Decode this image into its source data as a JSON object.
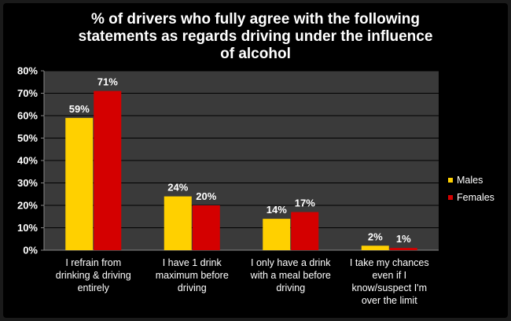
{
  "chart_data": {
    "type": "bar",
    "title": "% of drivers who fully agree with the following statements as regards driving under the influence of alcohol",
    "title_lines": [
      "% of drivers who fully agree with the following",
      "statements as regards driving under the influence",
      "of alcohol"
    ],
    "categories": [
      "I refrain from drinking & driving entirely",
      "I have 1 drink maximum before driving",
      "I only have a drink with a meal before driving",
      "I take my chances even if I know/suspect I'm over the limit"
    ],
    "category_lines": [
      [
        "I refrain from",
        "drinking & driving",
        "entirely"
      ],
      [
        "I have 1 drink",
        "maximum before",
        "driving"
      ],
      [
        "I only have a drink",
        "with a meal before",
        "driving"
      ],
      [
        "I take my chances",
        "even if I",
        "know/suspect I'm",
        "over the limit"
      ]
    ],
    "series": [
      {
        "name": "Males",
        "values": [
          59,
          24,
          14,
          2
        ],
        "labels": [
          "59%",
          "24%",
          "14%",
          "2%"
        ],
        "color": "#ffd000"
      },
      {
        "name": "Females",
        "values": [
          71,
          20,
          17,
          1
        ],
        "labels": [
          "71%",
          "20%",
          "17%",
          "1%"
        ],
        "color": "#d40000"
      }
    ],
    "y_ticks": [
      0,
      10,
      20,
      30,
      40,
      50,
      60,
      70,
      80
    ],
    "y_tick_labels": [
      "0%",
      "10%",
      "20%",
      "30%",
      "40%",
      "50%",
      "60%",
      "70%",
      "80%"
    ],
    "ylim": [
      0,
      80
    ],
    "grid": true,
    "legend_position": "right",
    "plot_background": "#3a3a3a",
    "background": "#000000"
  }
}
